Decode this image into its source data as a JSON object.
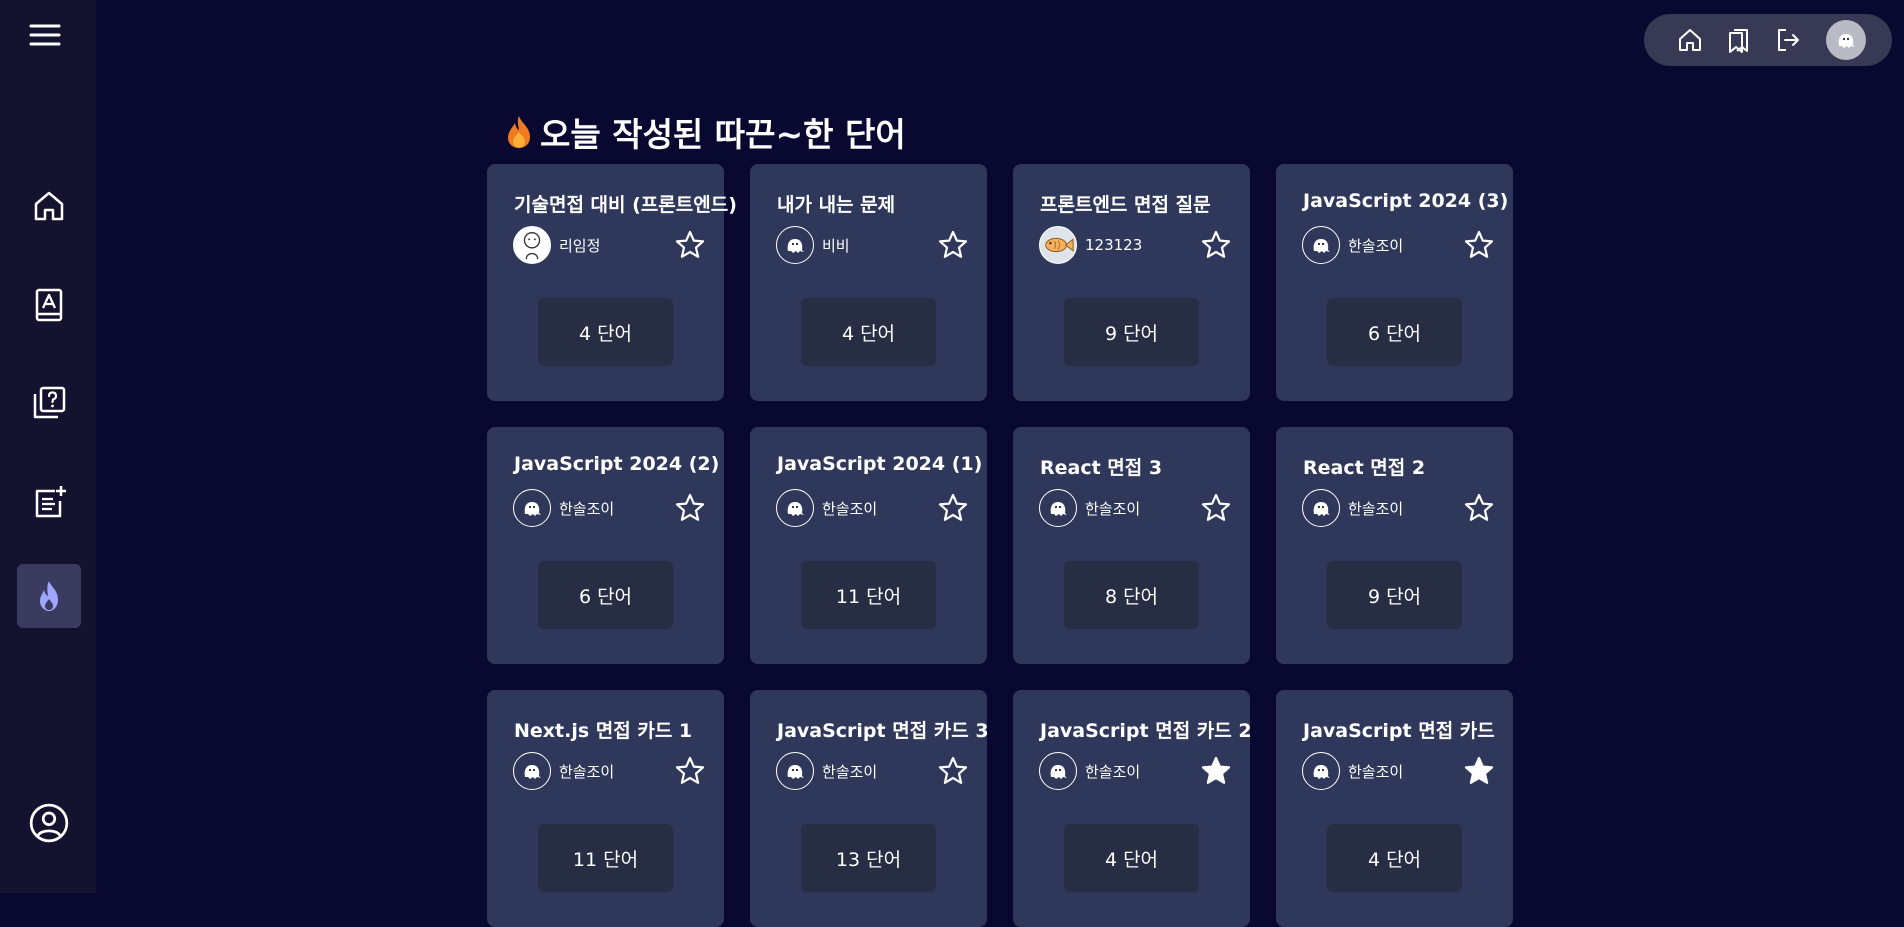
{
  "sidebar": {
    "menu_icon": "hamburger-menu-icon",
    "items": [
      {
        "icon": "home-icon"
      },
      {
        "icon": "wordbook-icon"
      },
      {
        "icon": "quiz-icon"
      },
      {
        "icon": "add-note-icon"
      },
      {
        "icon": "fire-icon",
        "active": true
      },
      {
        "icon": "profile-icon"
      }
    ],
    "active_color": "#9fa6ff"
  },
  "topbar": {
    "icons": [
      "home-icon",
      "bookmark-icon",
      "logout-icon",
      "avatar"
    ]
  },
  "main": {
    "title": "오늘 작성된 따끈~한 단어",
    "cards": [
      {
        "title": "기술면접 대비 (프론트엔드)",
        "author": "리임정",
        "avatar": "sketch",
        "count": "4 단어",
        "starred": false
      },
      {
        "title": "내가 내는 문제",
        "author": "비비",
        "avatar": "ghost",
        "count": "4 단어",
        "starred": false
      },
      {
        "title": "프론트엔드 면접 질문",
        "author": "123123",
        "avatar": "fish",
        "count": "9 단어",
        "starred": false
      },
      {
        "title": "JavaScript 2024 (3)",
        "author": "한솔조이",
        "avatar": "ghost",
        "count": "6 단어",
        "starred": false
      },
      {
        "title": "JavaScript 2024 (2)",
        "author": "한솔조이",
        "avatar": "ghost",
        "count": "6 단어",
        "starred": false
      },
      {
        "title": "JavaScript 2024 (1)",
        "author": "한솔조이",
        "avatar": "ghost",
        "count": "11 단어",
        "starred": false
      },
      {
        "title": "React 면접 3",
        "author": "한솔조이",
        "avatar": "ghost",
        "count": "8 단어",
        "starred": false
      },
      {
        "title": "React 면접 2",
        "author": "한솔조이",
        "avatar": "ghost",
        "count": "9 단어",
        "starred": false
      },
      {
        "title": "Next.js 면접 카드 1",
        "author": "한솔조이",
        "avatar": "ghost",
        "count": "11 단어",
        "starred": false
      },
      {
        "title": "JavaScript 면접 카드 3",
        "author": "한솔조이",
        "avatar": "ghost",
        "count": "13 단어",
        "starred": false
      },
      {
        "title": "JavaScript 면접 카드 2",
        "author": "한솔조이",
        "avatar": "ghost",
        "count": "4 단어",
        "starred": true
      },
      {
        "title": "JavaScript 면접 카드",
        "author": "한솔조이",
        "avatar": "ghost",
        "count": "4 단어",
        "starred": true
      }
    ]
  },
  "colors": {
    "background": "#090830",
    "sidebar": "#13132f",
    "card": "#2f385a",
    "count_box": "#272d42",
    "topbar": "#383a55"
  }
}
